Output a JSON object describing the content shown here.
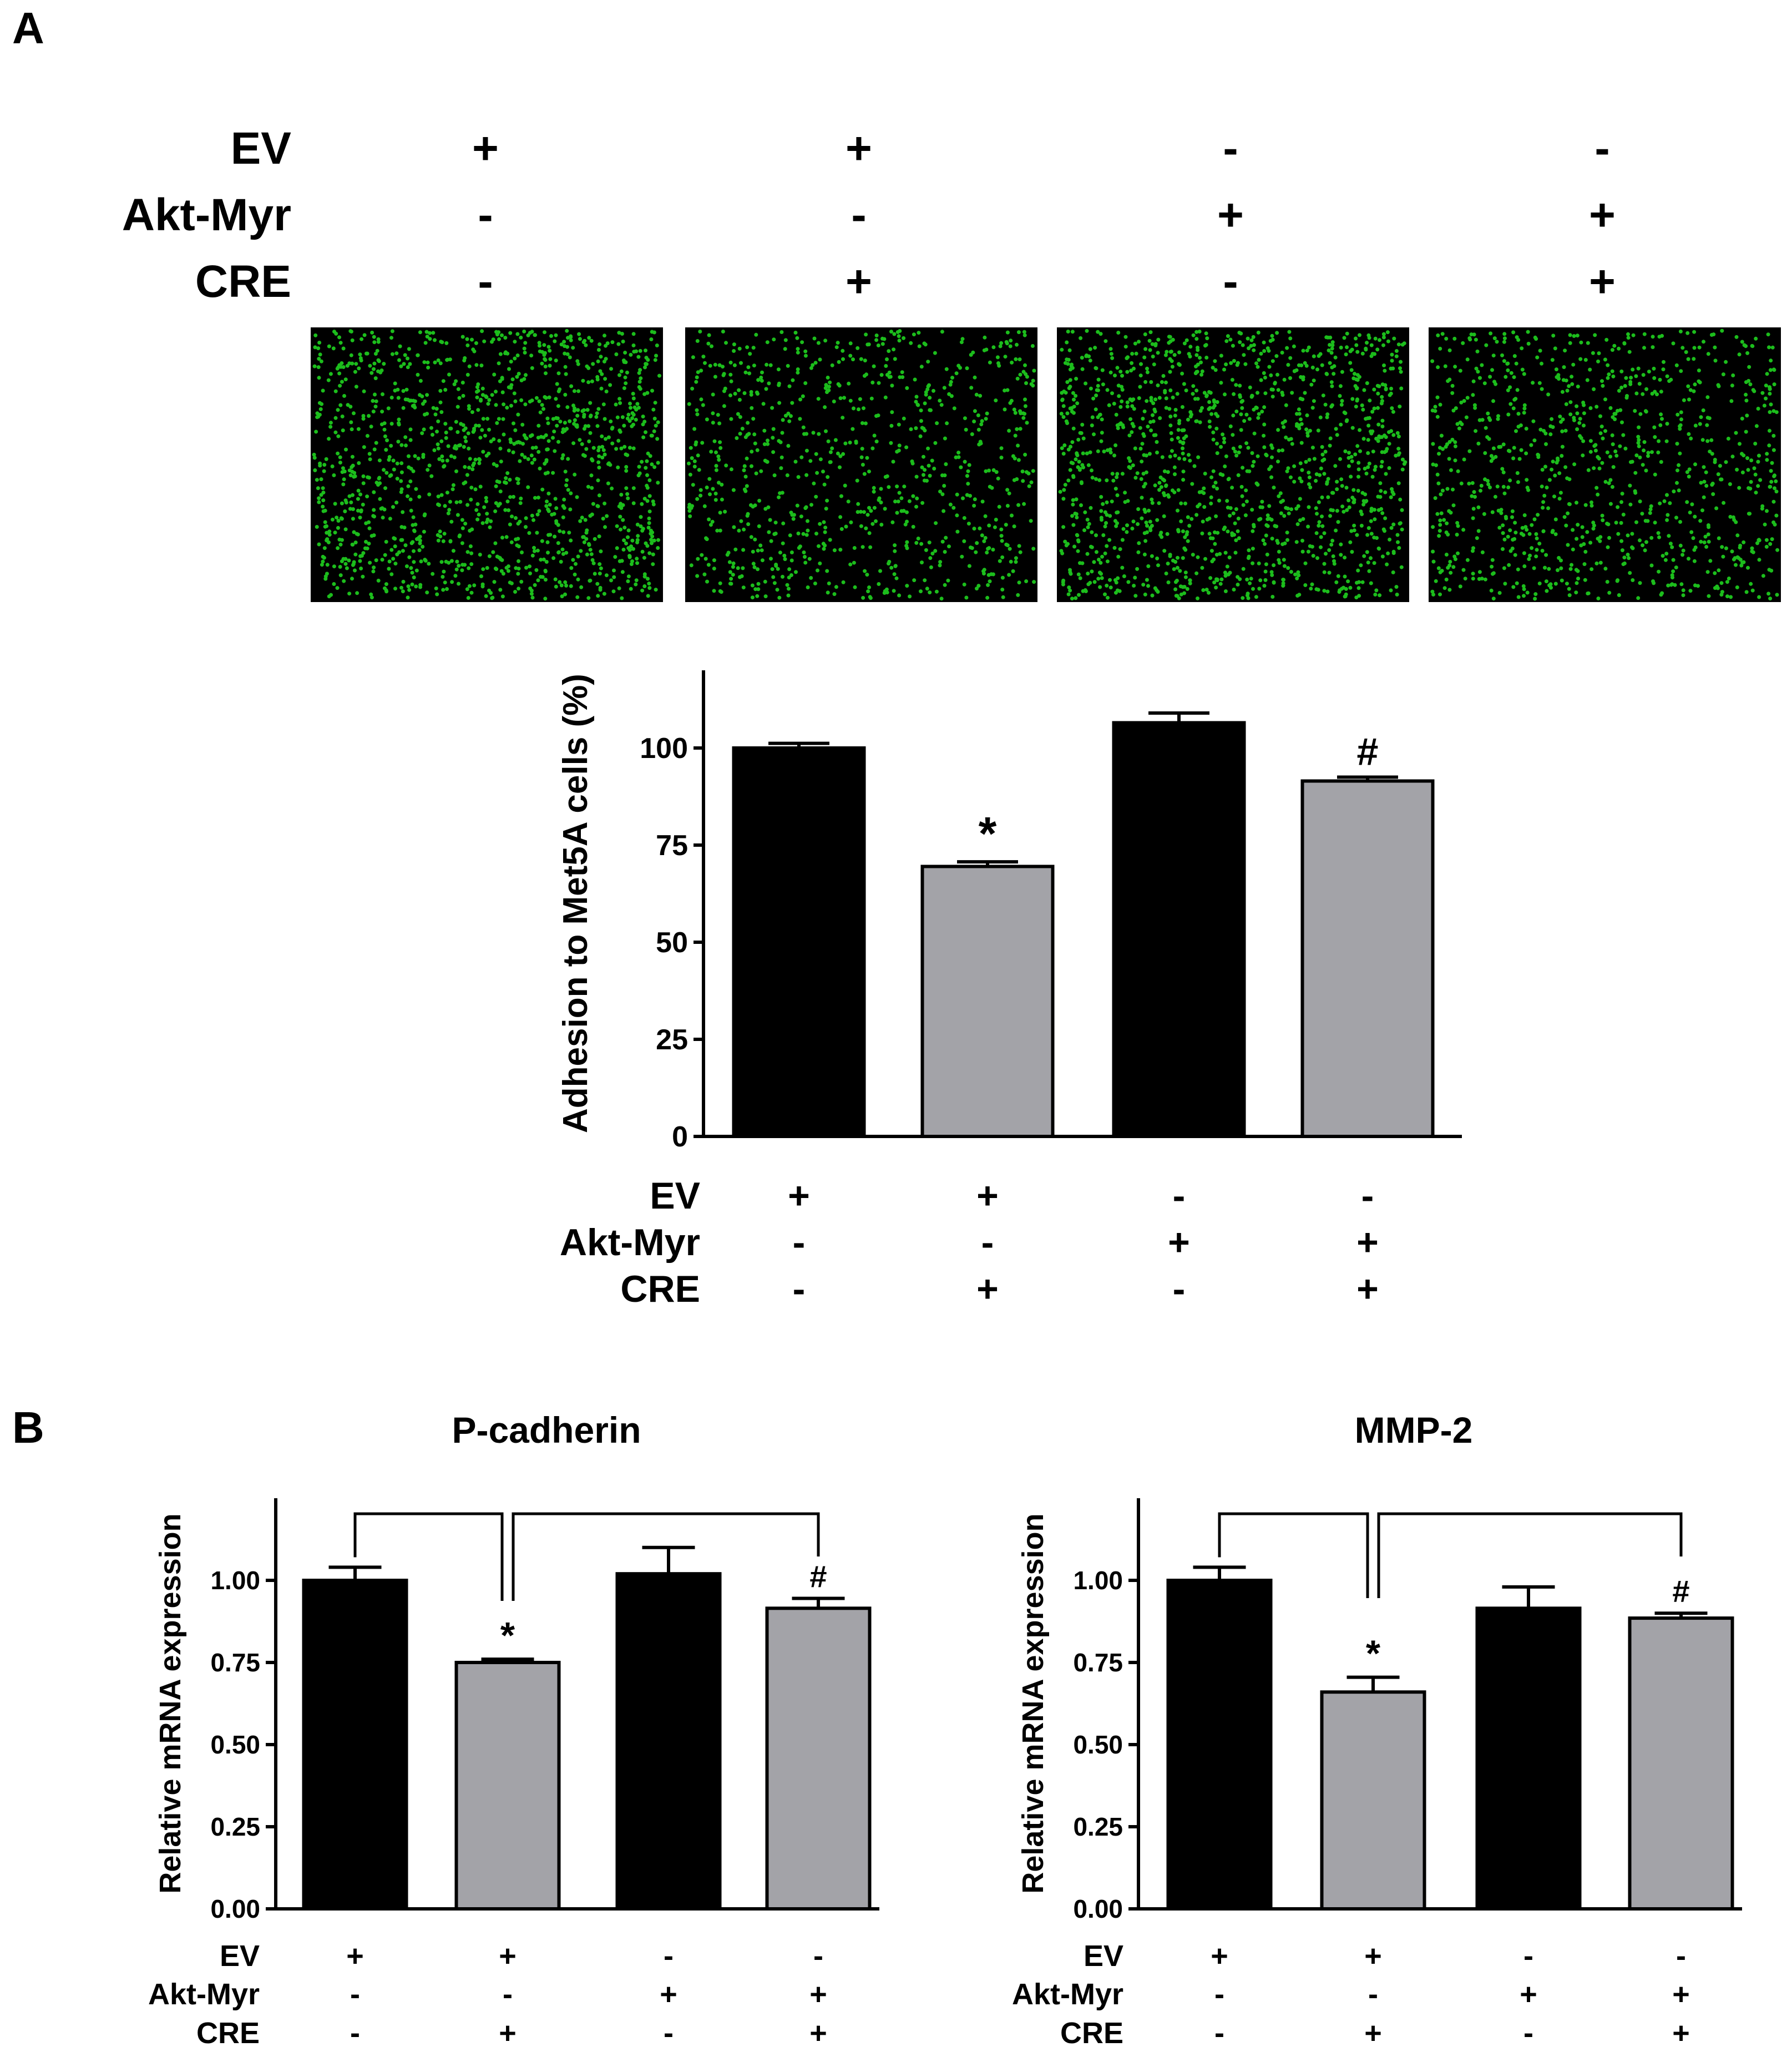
{
  "panel_a": {
    "panel_label": "A",
    "condition_rows": [
      {
        "label": "EV",
        "values": [
          "+",
          "+",
          "-",
          "-"
        ]
      },
      {
        "label": "Akt-Myr",
        "values": [
          "-",
          "-",
          "+",
          "+"
        ]
      },
      {
        "label": "CRE",
        "values": [
          "-",
          "+",
          "-",
          "+"
        ]
      }
    ],
    "micrograph_color": "#1fd11f",
    "micrograph_background": "#000000"
  },
  "panel_b": {
    "panel_label": "B"
  },
  "colors": {
    "black_bar": "#000000",
    "gray_bar": "#a3a3a8",
    "bar_outline": "#000000"
  },
  "chart_data": [
    {
      "id": "adhesion",
      "type": "bar",
      "title": "",
      "xlabel": "",
      "ylabel": "Adhesion to Met5A cells (%)",
      "ylim": [
        0,
        120
      ],
      "yticks": [
        0,
        25,
        50,
        75,
        100
      ],
      "tick_labels": [
        "0",
        "25",
        "50",
        "75",
        "100"
      ],
      "bar_colors": [
        "black",
        "gray",
        "black",
        "gray"
      ],
      "values": [
        100,
        69.5,
        106.5,
        91.5
      ],
      "errors": [
        1.2,
        1.2,
        2.5,
        1.0
      ],
      "annotations": [
        "",
        "*",
        "",
        "#"
      ],
      "condition_rows": [
        {
          "label": "EV",
          "values": [
            "+",
            "+",
            "-",
            "-"
          ]
        },
        {
          "label": "Akt-Myr",
          "values": [
            "-",
            "-",
            "+",
            "+"
          ]
        },
        {
          "label": "CRE",
          "values": [
            "-",
            "+",
            "-",
            "+"
          ]
        }
      ]
    },
    {
      "id": "p-cadherin",
      "type": "bar",
      "title": "P-cadherin",
      "xlabel": "",
      "ylabel": "Relative mRNA expression",
      "ylim": [
        0,
        1.25
      ],
      "yticks": [
        0,
        0.25,
        0.5,
        0.75,
        1.0
      ],
      "tick_labels": [
        "0.00",
        "0.25",
        "0.50",
        "0.75",
        "1.00"
      ],
      "bar_colors": [
        "black",
        "gray",
        "black",
        "gray"
      ],
      "values": [
        1.0,
        0.75,
        1.02,
        0.915
      ],
      "errors": [
        0.04,
        0.01,
        0.08,
        0.03
      ],
      "annotations": [
        "",
        "*",
        "",
        "#"
      ],
      "brackets": true,
      "condition_rows": [
        {
          "label": "EV",
          "values": [
            "+",
            "+",
            "-",
            "-"
          ]
        },
        {
          "label": "Akt-Myr",
          "values": [
            "-",
            "-",
            "+",
            "+"
          ]
        },
        {
          "label": "CRE",
          "values": [
            "-",
            "+",
            "-",
            "+"
          ]
        }
      ]
    },
    {
      "id": "mmp-2",
      "type": "bar",
      "title": "MMP-2",
      "xlabel": "",
      "ylabel": "Relative mRNA expression",
      "ylim": [
        0,
        1.25
      ],
      "yticks": [
        0,
        0.25,
        0.5,
        0.75,
        1.0
      ],
      "tick_labels": [
        "0.00",
        "0.25",
        "0.50",
        "0.75",
        "1.00"
      ],
      "bar_colors": [
        "black",
        "gray",
        "black",
        "gray"
      ],
      "values": [
        1.0,
        0.66,
        0.915,
        0.885
      ],
      "errors": [
        0.04,
        0.045,
        0.065,
        0.015
      ],
      "annotations": [
        "",
        "*",
        "",
        "#"
      ],
      "brackets": true,
      "condition_rows": [
        {
          "label": "EV",
          "values": [
            "+",
            "+",
            "-",
            "-"
          ]
        },
        {
          "label": "Akt-Myr",
          "values": [
            "-",
            "-",
            "+",
            "+"
          ]
        },
        {
          "label": "CRE",
          "values": [
            "-",
            "+",
            "-",
            "+"
          ]
        }
      ]
    }
  ]
}
